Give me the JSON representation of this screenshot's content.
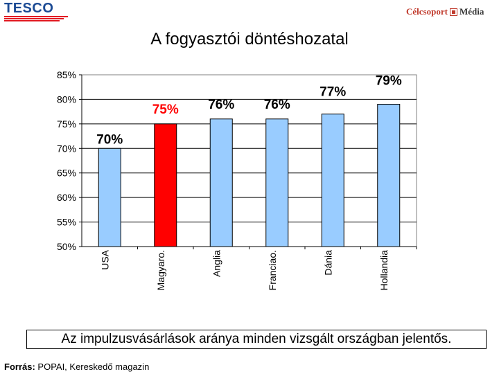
{
  "header": {
    "left_logo_text": "TESCO",
    "right_logo_brand": "Célcsoport",
    "right_logo_media": "Média"
  },
  "title": "A fogyasztói döntéshozatal",
  "colors": {
    "bar_default": "#99ccff",
    "bar_highlight": "#ff0000",
    "plot_background": "#ffffff",
    "tesco_blue": "#1b4a94",
    "tesco_red": "#e21b23"
  },
  "chart_data": {
    "type": "bar",
    "categories": [
      "USA",
      "Magyaro.",
      "Anglia",
      "Franciao.",
      "Dánia",
      "Hollandia"
    ],
    "values": [
      70,
      75,
      76,
      76,
      77,
      79
    ],
    "data_labels": [
      "70%",
      "75%",
      "76%",
      "76%",
      "77%",
      "79%"
    ],
    "highlight_index": 1,
    "ylim": [
      50,
      85
    ],
    "yticks": [
      "50%",
      "55%",
      "60%",
      "65%",
      "70%",
      "75%",
      "80%",
      "85%"
    ],
    "grid": true,
    "legend": "none",
    "category_label_orientation": "vertical"
  },
  "caption": "Az impulzusvásárlások aránya minden vizsgált országban jelentős.",
  "source": {
    "label": "Forrás:",
    "text": " POPAI, Kereskedő magazin"
  }
}
